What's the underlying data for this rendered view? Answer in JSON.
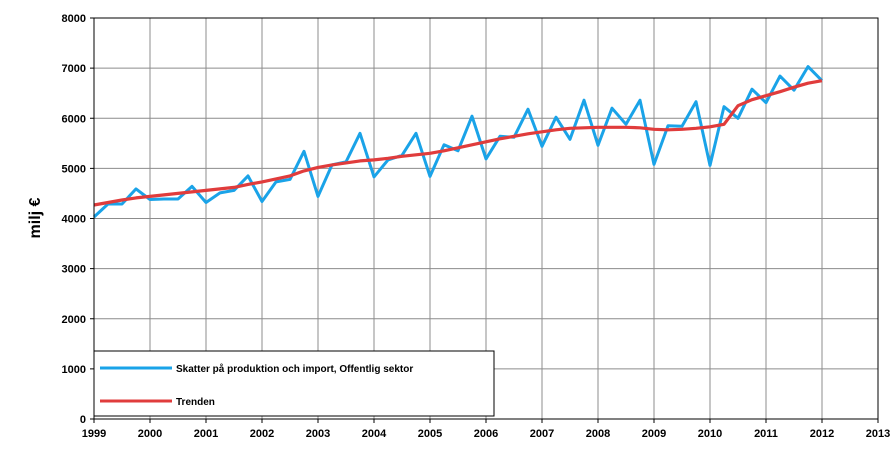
{
  "chart_data": {
    "type": "line",
    "title": "",
    "xlabel": "",
    "ylabel": "milj €",
    "xlim": [
      1999,
      2013
    ],
    "ylim": [
      0,
      8000
    ],
    "x_ticks": [
      "1999",
      "2000",
      "2001",
      "2002",
      "2003",
      "2004",
      "2005",
      "2006",
      "2007",
      "2008",
      "2009",
      "2010",
      "2011",
      "2012",
      "2013"
    ],
    "y_ticks": [
      "0",
      "1000",
      "2000",
      "3000",
      "4000",
      "5000",
      "6000",
      "7000",
      "8000"
    ],
    "grid": true,
    "legend_position": "bottom-left",
    "x": [
      1999.0,
      1999.25,
      1999.5,
      1999.75,
      2000.0,
      2000.25,
      2000.5,
      2000.75,
      2001.0,
      2001.25,
      2001.5,
      2001.75,
      2002.0,
      2002.25,
      2002.5,
      2002.75,
      2003.0,
      2003.25,
      2003.5,
      2003.75,
      2004.0,
      2004.25,
      2004.5,
      2004.75,
      2005.0,
      2005.25,
      2005.5,
      2005.75,
      2006.0,
      2006.25,
      2006.5,
      2006.75,
      2007.0,
      2007.25,
      2007.5,
      2007.75,
      2008.0,
      2008.25,
      2008.5,
      2008.75,
      2009.0,
      2009.25,
      2009.5,
      2009.75,
      2010.0,
      2010.25,
      2010.5,
      2010.75,
      2011.0,
      2011.25,
      2011.5,
      2011.75,
      2012.0
    ],
    "series": [
      {
        "name": "Skatter på produktion och import, Offentlig sektor",
        "color": "#1aa3e8",
        "values": [
          4030,
          4290,
          4290,
          4590,
          4380,
          4390,
          4390,
          4640,
          4320,
          4510,
          4560,
          4850,
          4340,
          4730,
          4780,
          5340,
          4440,
          5070,
          5130,
          5700,
          4830,
          5170,
          5260,
          5700,
          4840,
          5470,
          5350,
          6040,
          5190,
          5640,
          5620,
          6180,
          5440,
          6020,
          5580,
          6360,
          5460,
          6200,
          5880,
          6360,
          5080,
          5850,
          5840,
          6330,
          5060,
          6230,
          6000,
          6580,
          6310,
          6840,
          6560,
          7030,
          6750
        ]
      },
      {
        "name": "Trenden",
        "color": "#e03c3c",
        "values": [
          4270,
          4320,
          4370,
          4410,
          4440,
          4470,
          4500,
          4530,
          4560,
          4590,
          4620,
          4680,
          4730,
          4790,
          4850,
          4950,
          5020,
          5070,
          5110,
          5150,
          5170,
          5200,
          5240,
          5270,
          5300,
          5350,
          5410,
          5470,
          5530,
          5590,
          5640,
          5690,
          5730,
          5770,
          5800,
          5810,
          5820,
          5820,
          5820,
          5810,
          5780,
          5770,
          5780,
          5800,
          5830,
          5880,
          6250,
          6370,
          6450,
          6530,
          6620,
          6700,
          6750
        ]
      }
    ]
  }
}
